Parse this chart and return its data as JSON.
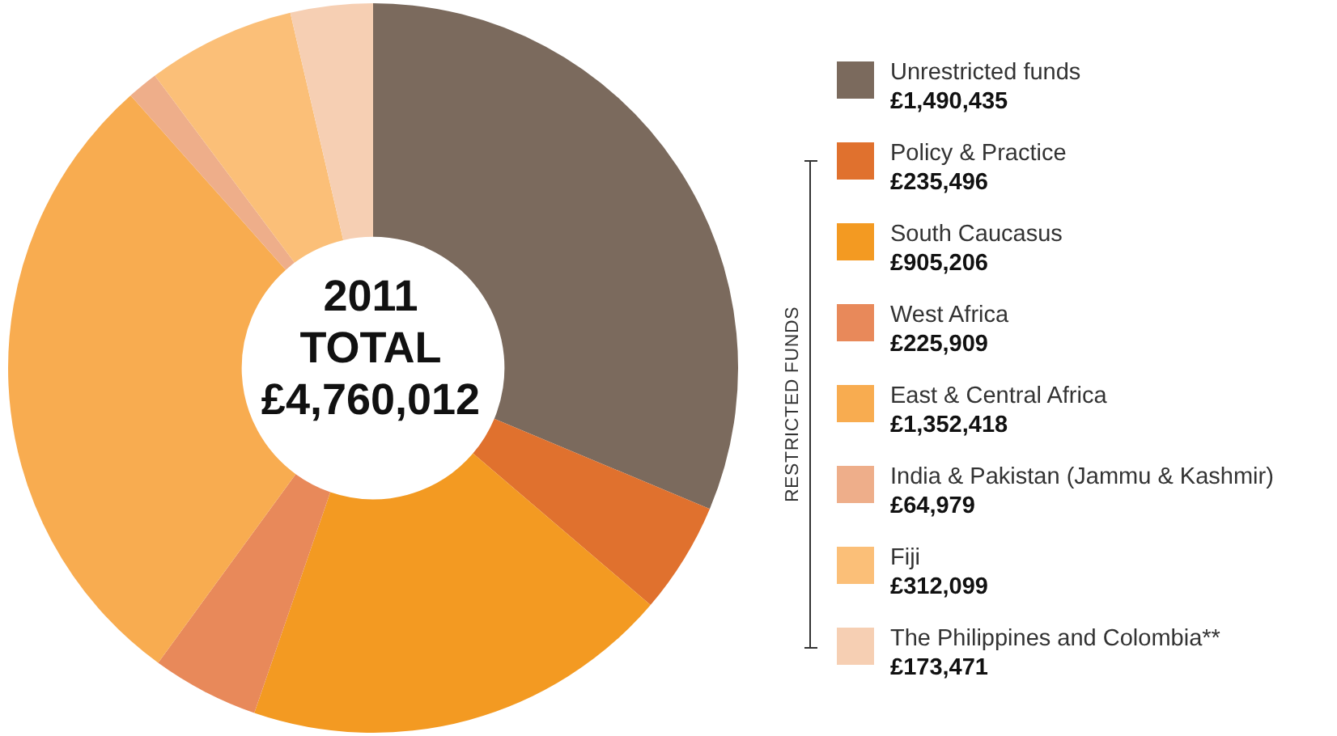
{
  "chart_data": {
    "type": "donut",
    "categories": [
      "Unrestricted funds",
      "Policy & Practice",
      "South Caucasus",
      "West Africa",
      "East & Central Africa",
      "India & Pakistan (Jammu & Kashmir)",
      "Fiji",
      "The Philippines and Colombia**"
    ],
    "values": [
      1490435,
      235496,
      905206,
      225909,
      1352418,
      64979,
      312099,
      173471
    ],
    "value_labels": [
      "£1,490,435",
      "£235,496",
      "£905,206",
      "£225,909",
      "£1,352,418",
      "£64,979",
      "£312,099",
      "£173,471"
    ],
    "colors": [
      "#7b6a5d",
      "#e0712e",
      "#f39a22",
      "#e8895a",
      "#f8ac50",
      "#eeae8a",
      "#fbbf78",
      "#f6cfb3"
    ],
    "legend": "right",
    "annotations": [
      "2011",
      "TOTAL",
      "£4,760,012",
      "RESTRICTED FUNDS"
    ]
  }
}
